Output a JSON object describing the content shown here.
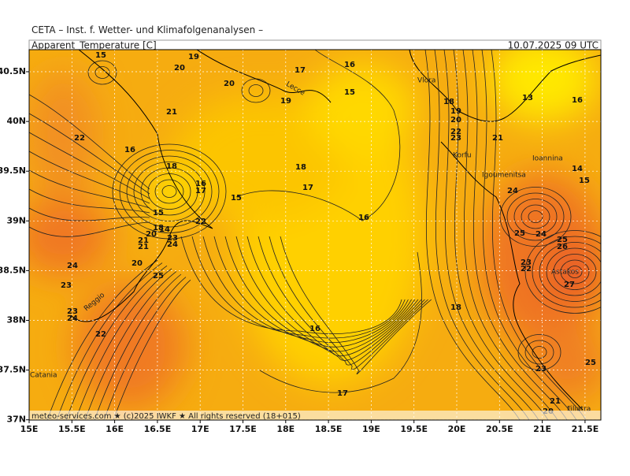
{
  "header": {
    "title": "CETA – Inst. f. Wetter- und Klimafolgenanalysen –",
    "parameter": "Apparent_Temperature [C]",
    "valid": "10.07.2025 09 UTC"
  },
  "axes": {
    "lon": [
      "15E",
      "15.5E",
      "16E",
      "16.5E",
      "17E",
      "17.5E",
      "18E",
      "18.5E",
      "19E",
      "19.5E",
      "20E",
      "20.5E",
      "21E",
      "21.5E"
    ],
    "lat": [
      "40.5N",
      "40N",
      "39.5N",
      "39N",
      "38.5N",
      "38N",
      "37.5N",
      "37N"
    ]
  },
  "contour_labels": [
    15,
    19,
    20,
    17,
    16,
    20,
    15,
    19,
    21,
    18,
    19,
    20,
    22,
    23,
    21,
    13,
    16,
    22,
    16,
    18,
    18,
    17,
    16,
    17,
    15,
    14,
    15,
    24,
    16,
    22,
    14,
    15,
    18,
    20,
    23,
    24,
    21,
    21,
    20,
    25,
    24,
    25,
    26,
    24,
    23,
    25,
    23,
    22,
    27,
    23,
    24,
    18,
    16,
    22,
    23,
    25,
    17,
    21,
    20
  ],
  "places": [
    "Lecce",
    "Vlora",
    "Korfu",
    "Igoumenitsa",
    "Ioannina",
    "Astakos",
    "Reggio",
    "Catania",
    "Filiatra"
  ],
  "footer": "meteo-services.com ★ (c)2025 IWKF ★ All rights reserved (18+015)"
}
